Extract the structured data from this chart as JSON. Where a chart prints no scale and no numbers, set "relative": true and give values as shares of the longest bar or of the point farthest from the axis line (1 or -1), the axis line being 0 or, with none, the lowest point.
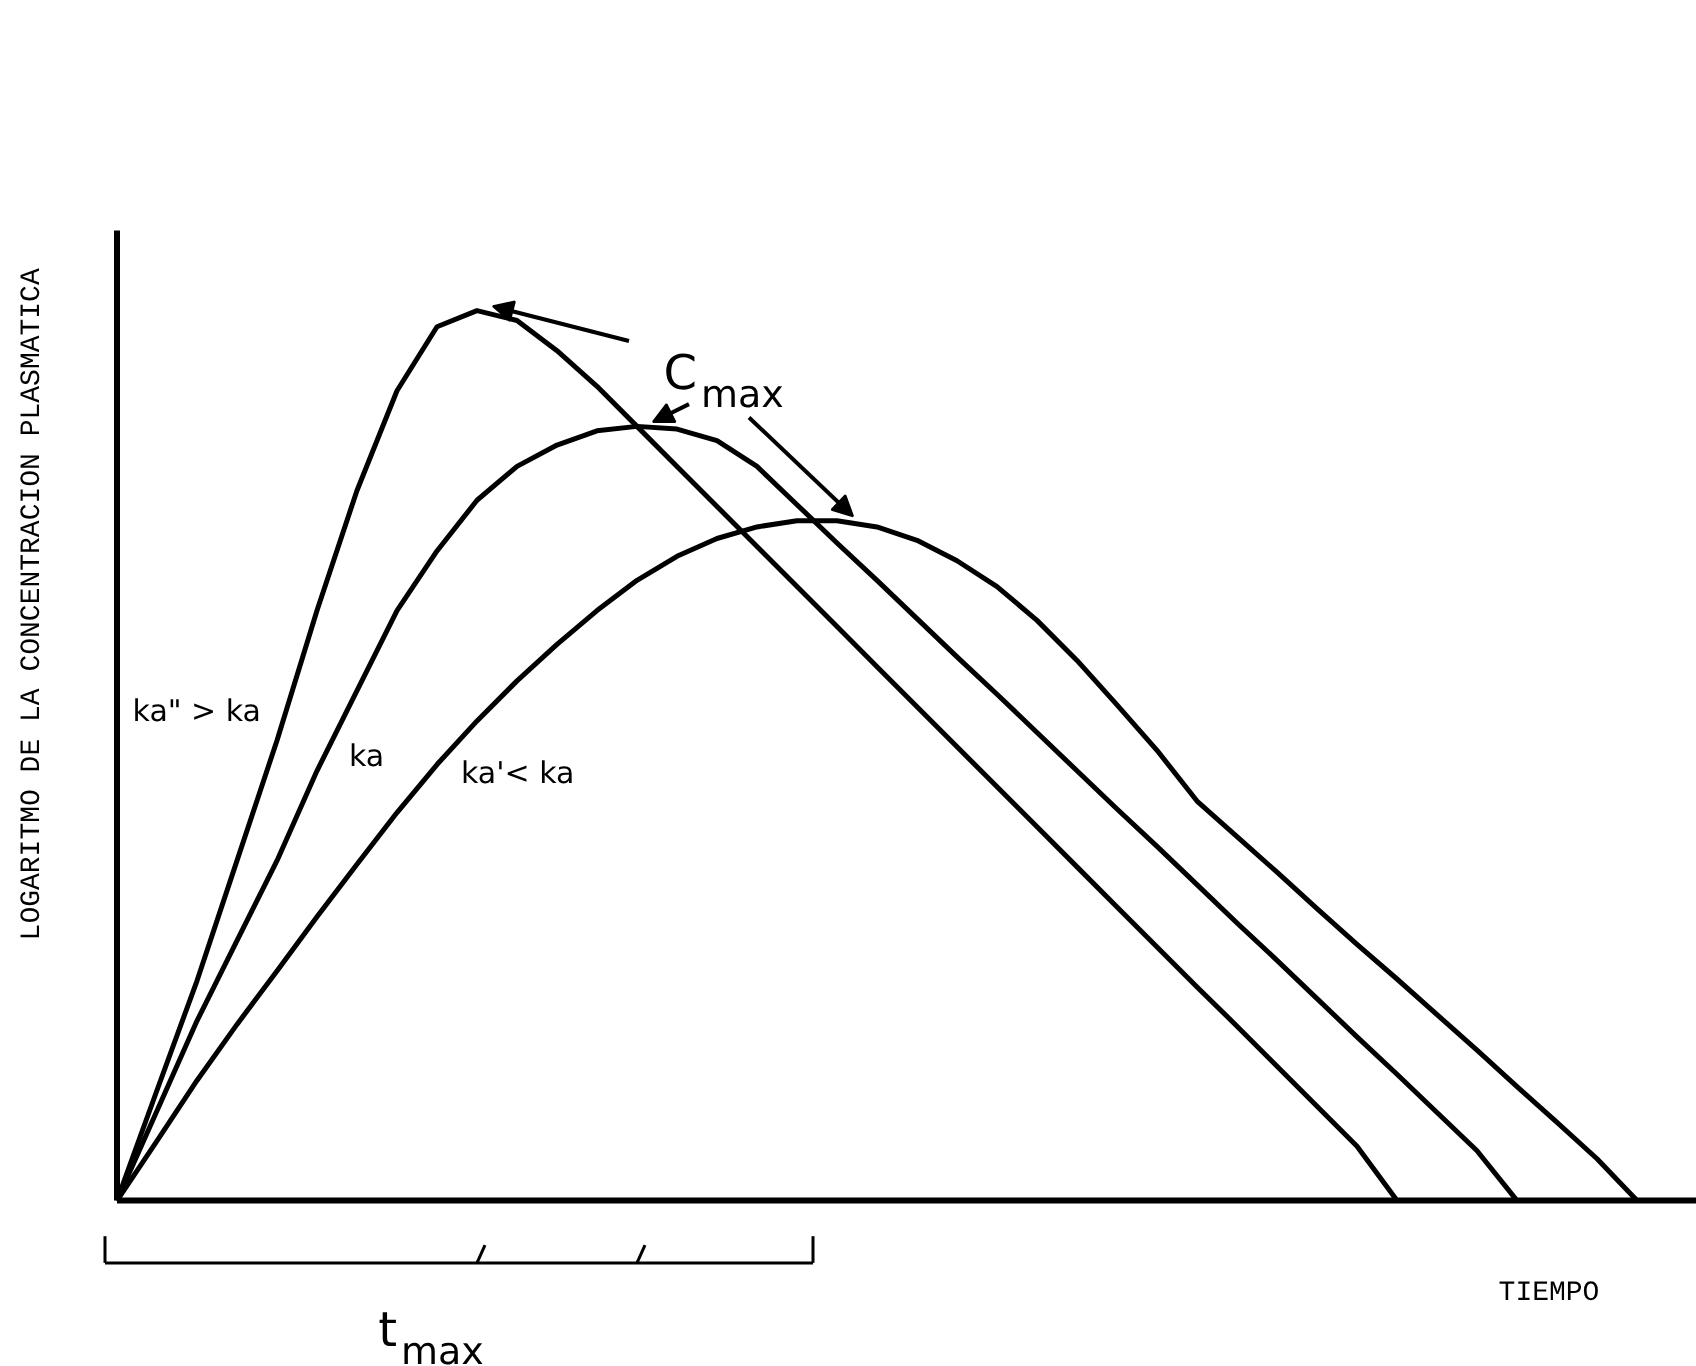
{
  "chart_data": {
    "type": "line",
    "relative": true,
    "xlabel": "TIEMPO",
    "ylabel": "LOGARITMO DE LA CONCENTRACION PLASMATICA",
    "annotations": [
      "C$_{max}$",
      "t$_{max}$"
    ],
    "categories": [
      null,
      null,
      null,
      null,
      null,
      null,
      null,
      null,
      null,
      null,
      null,
      null,
      null,
      null,
      null,
      null,
      null,
      null,
      null,
      null,
      null,
      null,
      null,
      null,
      null,
      null,
      null,
      null,
      null,
      null,
      null,
      null,
      null,
      null,
      null,
      null,
      null,
      null,
      null,
      null
    ],
    "series": [
      {
        "name": "ka\" > ka",
        "color": "#000000",
        "values": [
          0,
          0.124,
          0.247,
          0.382,
          0.517,
          0.663,
          0.798,
          0.91,
          0.982,
          1.0,
          0.989,
          0.955,
          0.915,
          0.87,
          0.825,
          0.78,
          0.735,
          0.69,
          0.645,
          0.6,
          0.555,
          0.51,
          0.465,
          0.42,
          0.375,
          0.33,
          0.285,
          0.24,
          0.196,
          0.151,
          0.106,
          0.061,
          0,
          null,
          null,
          null,
          null,
          null,
          null,
          null
        ]
      },
      {
        "name": "ka",
        "color": "#000000",
        "values": [
          0,
          0.101,
          0.202,
          0.292,
          0.382,
          0.483,
          0.573,
          0.663,
          0.73,
          0.787,
          0.825,
          0.849,
          0.865,
          0.87,
          0.867,
          0.854,
          0.825,
          0.782,
          0.739,
          0.697,
          0.654,
          0.611,
          0.569,
          0.526,
          0.483,
          0.44,
          0.398,
          0.355,
          0.312,
          0.27,
          0.227,
          0.184,
          0.142,
          0.099,
          0.056,
          0,
          null,
          null,
          null,
          null
        ]
      },
      {
        "name": "ka'< ka",
        "color": "#000000",
        "values": [
          0,
          0.067,
          0.135,
          0.198,
          0.258,
          0.319,
          0.378,
          0.436,
          0.49,
          0.539,
          0.584,
          0.625,
          0.663,
          0.697,
          0.724,
          0.744,
          0.757,
          0.764,
          0.764,
          0.757,
          0.742,
          0.719,
          0.69,
          0.652,
          0.607,
          0.557,
          0.506,
          0.449,
          0.409,
          0.369,
          0.328,
          0.288,
          0.249,
          0.209,
          0.169,
          0.128,
          0.088,
          0.047,
          0,
          null
        ]
      }
    ]
  }
}
